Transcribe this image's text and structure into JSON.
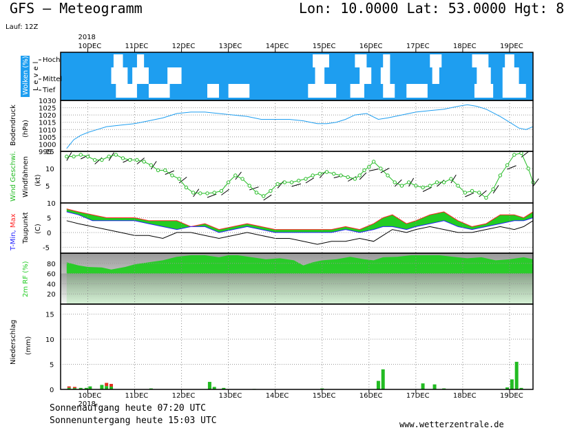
{
  "header": {
    "title": "GFS – Meteogramm",
    "location": "Lon: 10.0000 Lat: 53.0000 Hgt: 8"
  },
  "run_label": "Lauf: 12Z",
  "footer": {
    "sunrise": "Sonnenaufgang heute 07:20 UTC",
    "sunset": "Sonnenuntergang heute 15:03 UTC",
    "site": "www.wetterzentrale.de"
  },
  "colors": {
    "cloud_blue": "#1e9ef0",
    "pressure_line": "#1e9ef0",
    "wind_green": "#22bb22",
    "temp_blue": "#2020ff",
    "temp_red": "#ff2020",
    "rh_green": "#22cc22",
    "precip_green": "#22bb22",
    "precip_red": "#e03020"
  },
  "chart_data": {
    "type": "meteogram",
    "year_label": "2018",
    "day_labels": [
      "10DEC",
      "11DEC",
      "12DEC",
      "13DEC",
      "14DEC",
      "15DEC",
      "16DEC",
      "17DEC",
      "18DEC",
      "19DEC"
    ],
    "panels": [
      {
        "id": "clouds",
        "ylabel": [
          "Wolken (%)",
          "Level"
        ],
        "level_labels": [
          "Hoch",
          "Mittel",
          "Tief"
        ],
        "cloud_gaps": {
          "Hoch": [
            [
              10.55,
              10.75
            ],
            [
              11.05,
              11.2
            ],
            [
              14.8,
              15.15
            ],
            [
              15.7,
              15.95
            ],
            [
              16.3,
              16.45
            ],
            [
              17.3,
              17.55
            ],
            [
              18.2,
              18.55
            ],
            [
              18.9,
              19.1
            ]
          ],
          "Mittel": [
            [
              10.5,
              10.85
            ],
            [
              10.95,
              11.3
            ],
            [
              11.7,
              12.0
            ],
            [
              14.85,
              15.05
            ],
            [
              15.8,
              16.05
            ],
            [
              16.25,
              16.45
            ],
            [
              17.35,
              17.5
            ],
            [
              18.3,
              18.6
            ],
            [
              18.85,
              19.2
            ]
          ],
          "Tief": [
            [
              10.6,
              11.05
            ],
            [
              11.3,
              11.75
            ],
            [
              12.55,
              12.8
            ],
            [
              13.0,
              13.45
            ],
            [
              14.7,
              15.3
            ],
            [
              15.6,
              15.9
            ],
            [
              16.3,
              16.55
            ],
            [
              16.8,
              17.25
            ],
            [
              18.25,
              18.65
            ],
            [
              18.85,
              19.35
            ]
          ]
        }
      },
      {
        "id": "pressure",
        "ylabel": [
          "Bodendruck",
          "(hPa)"
        ],
        "ylim": [
          995,
          1030
        ],
        "yticks": [
          995,
          1000,
          1005,
          1010,
          1015,
          1020,
          1025,
          1030
        ],
        "x": [
          9.55,
          9.7,
          9.85,
          10.0,
          10.2,
          10.4,
          10.7,
          11.0,
          11.3,
          11.6,
          11.9,
          12.2,
          12.5,
          12.8,
          13.1,
          13.4,
          13.7,
          14.0,
          14.3,
          14.6,
          14.9,
          15.1,
          15.3,
          15.5,
          15.7,
          15.95,
          16.2,
          16.4,
          16.7,
          17.0,
          17.3,
          17.6,
          17.9,
          18.1,
          18.3,
          18.5,
          18.8,
          19.0,
          19.2,
          19.35,
          19.5
        ],
        "values": [
          997,
          1003,
          1006,
          1008,
          1010,
          1012,
          1013,
          1014,
          1016,
          1018,
          1021,
          1022,
          1022,
          1021,
          1020,
          1019,
          1017,
          1017,
          1017,
          1016,
          1014,
          1014,
          1015,
          1017,
          1020,
          1021,
          1017,
          1018,
          1020,
          1022,
          1023,
          1024,
          1026,
          1027,
          1026,
          1024,
          1019,
          1015,
          1011,
          1010,
          1012
        ]
      },
      {
        "id": "wind",
        "ylabel": [
          "Wind Geschwi.",
          "(kt)"
        ],
        "ylabel2": "Windfahnen",
        "ylim": [
          0,
          15
        ],
        "yticks": [
          5,
          10,
          15
        ],
        "x": [
          9.55,
          9.7,
          9.85,
          10.0,
          10.15,
          10.3,
          10.45,
          10.6,
          10.75,
          10.9,
          11.05,
          11.2,
          11.35,
          11.5,
          11.65,
          11.8,
          11.95,
          12.1,
          12.25,
          12.4,
          12.55,
          12.7,
          12.85,
          13.0,
          13.15,
          13.3,
          13.45,
          13.6,
          13.75,
          13.9,
          14.05,
          14.2,
          14.35,
          14.5,
          14.65,
          14.8,
          14.95,
          15.1,
          15.25,
          15.4,
          15.55,
          15.7,
          15.8,
          15.9,
          16.0,
          16.1,
          16.25,
          16.4,
          16.55,
          16.7,
          16.85,
          17.0,
          17.15,
          17.3,
          17.45,
          17.6,
          17.75,
          17.9,
          18.05,
          18.2,
          18.35,
          18.5,
          18.65,
          18.8,
          18.95,
          19.1,
          19.25,
          19.4,
          19.5
        ],
        "values": [
          13.5,
          13.5,
          14,
          13.5,
          12.5,
          12.5,
          13.5,
          14,
          13,
          12.5,
          12.5,
          12,
          11,
          9.5,
          9.5,
          8,
          7,
          4.5,
          3,
          2.8,
          2.8,
          3,
          3.5,
          6,
          8,
          7,
          5,
          3,
          2,
          3.5,
          5.5,
          6,
          6,
          6.5,
          7,
          8,
          8.5,
          9,
          8.5,
          8,
          7.5,
          7,
          8,
          9.5,
          10.5,
          12,
          10,
          8,
          6,
          5,
          6,
          5,
          4.5,
          5,
          6,
          6,
          7,
          5,
          3,
          3.5,
          3,
          1.5,
          4,
          8,
          11,
          14,
          14.5,
          10,
          6
        ]
      },
      {
        "id": "temperature",
        "ylabel": [
          "T-Min, Max",
          "Taupunkt",
          "(C)"
        ],
        "ylim": [
          -7,
          10
        ],
        "yticks": [
          -5,
          0,
          5,
          10
        ],
        "series": [
          {
            "name": "T-Min",
            "x": [
              9.55,
              9.8,
              10.1,
              10.4,
              10.7,
              11.0,
              11.3,
              11.6,
              11.9,
              12.2,
              12.5,
              12.8,
              13.1,
              13.4,
              13.7,
              14.0,
              14.3,
              14.6,
              14.9,
              15.2,
              15.5,
              15.8,
              16.1,
              16.3,
              16.5,
              16.8,
              17.0,
              17.3,
              17.6,
              17.9,
              18.2,
              18.5,
              18.8,
              19.1,
              19.3,
              19.5
            ],
            "values": [
              7,
              6,
              4,
              4,
              4,
              4,
              3,
              2,
              1,
              2,
              2,
              0,
              1,
              2,
              1,
              0,
              0,
              0,
              0,
              0,
              1,
              0,
              1,
              2,
              2,
              1,
              2,
              3,
              4,
              2,
              1,
              2,
              3,
              4,
              4,
              5
            ]
          },
          {
            "name": "Max",
            "x": [
              9.55,
              9.8,
              10.1,
              10.4,
              10.7,
              11.0,
              11.3,
              11.6,
              11.9,
              12.2,
              12.5,
              12.8,
              13.1,
              13.4,
              13.7,
              14.0,
              14.3,
              14.6,
              14.9,
              15.2,
              15.5,
              15.8,
              16.1,
              16.3,
              16.5,
              16.8,
              17.0,
              17.3,
              17.6,
              17.9,
              18.2,
              18.5,
              18.8,
              19.1,
              19.3,
              19.5
            ],
            "values": [
              8,
              7,
              6,
              5,
              5,
              5,
              4,
              4,
              4,
              2,
              3,
              1,
              2,
              3,
              2,
              1,
              1,
              1,
              1,
              1,
              2,
              1,
              3,
              5,
              6,
              3,
              4,
              6,
              7,
              4,
              2,
              3,
              6,
              6,
              5,
              7
            ]
          },
          {
            "name": "Taupunkt",
            "x": [
              9.55,
              9.8,
              10.1,
              10.4,
              10.7,
              11.0,
              11.3,
              11.6,
              11.9,
              12.2,
              12.5,
              12.8,
              13.1,
              13.4,
              13.7,
              14.0,
              14.3,
              14.6,
              14.9,
              15.2,
              15.5,
              15.8,
              16.1,
              16.3,
              16.5,
              16.8,
              17.0,
              17.3,
              17.6,
              17.9,
              18.2,
              18.5,
              18.8,
              19.1,
              19.3,
              19.5
            ],
            "values": [
              4,
              3,
              2,
              1,
              0,
              -1,
              -1,
              -2,
              0,
              0,
              -1,
              -2,
              -1,
              0,
              -1,
              -2,
              -2,
              -3,
              -4,
              -3,
              -3,
              -2,
              -3,
              -1,
              1,
              0,
              1,
              2,
              1,
              0,
              0,
              1,
              2,
              1,
              2,
              4
            ]
          }
        ]
      },
      {
        "id": "rh",
        "ylabel": [
          "2m RF (%)"
        ],
        "ylim": [
          0,
          100
        ],
        "yticks": [
          20,
          40,
          60,
          80
        ],
        "x": [
          9.55,
          9.8,
          10.0,
          10.3,
          10.5,
          10.8,
          11.0,
          11.3,
          11.6,
          11.9,
          12.2,
          12.5,
          12.8,
          13.0,
          13.2,
          13.5,
          13.8,
          14.1,
          14.4,
          14.6,
          14.8,
          15.0,
          15.3,
          15.6,
          15.9,
          16.1,
          16.3,
          16.6,
          16.9,
          17.2,
          17.5,
          17.8,
          18.1,
          18.4,
          18.7,
          19.0,
          19.3,
          19.5
        ],
        "values": [
          82,
          76,
          73,
          72,
          68,
          73,
          78,
          82,
          86,
          93,
          96,
          96,
          92,
          96,
          96,
          92,
          88,
          90,
          86,
          76,
          82,
          86,
          88,
          93,
          88,
          86,
          92,
          93,
          96,
          96,
          96,
          93,
          90,
          92,
          86,
          88,
          92,
          88
        ]
      },
      {
        "id": "precip",
        "ylabel": [
          "Niederschlag",
          "(mm)"
        ],
        "ylim": [
          0,
          17
        ],
        "yticks": [
          0,
          5,
          10,
          15
        ],
        "bars": [
          {
            "x": 9.6,
            "value": 0.6,
            "kind": "mixed"
          },
          {
            "x": 9.72,
            "value": 0.5,
            "kind": "mixed"
          },
          {
            "x": 9.85,
            "value": 0.3,
            "kind": "rain"
          },
          {
            "x": 9.97,
            "value": 0.3,
            "kind": "rain"
          },
          {
            "x": 10.05,
            "value": 0.6,
            "kind": "rain"
          },
          {
            "x": 10.3,
            "value": 0.9,
            "kind": "rain"
          },
          {
            "x": 10.4,
            "value": 1.3,
            "kind": "mixed"
          },
          {
            "x": 10.5,
            "value": 1.1,
            "kind": "mixed"
          },
          {
            "x": 11.35,
            "value": 0.2,
            "kind": "rain"
          },
          {
            "x": 12.6,
            "value": 1.5,
            "kind": "rain"
          },
          {
            "x": 12.7,
            "value": 0.5,
            "kind": "rain"
          },
          {
            "x": 12.9,
            "value": 0.3,
            "kind": "rain"
          },
          {
            "x": 13.55,
            "value": 0.1,
            "kind": "rain"
          },
          {
            "x": 15.0,
            "value": 0.2,
            "kind": "rain"
          },
          {
            "x": 16.2,
            "value": 1.7,
            "kind": "rain"
          },
          {
            "x": 16.3,
            "value": 4.0,
            "kind": "rain"
          },
          {
            "x": 17.15,
            "value": 1.2,
            "kind": "rain"
          },
          {
            "x": 17.4,
            "value": 1.0,
            "kind": "rain"
          },
          {
            "x": 17.6,
            "value": 0.2,
            "kind": "rain"
          },
          {
            "x": 18.95,
            "value": 0.4,
            "kind": "rain"
          },
          {
            "x": 19.05,
            "value": 2.0,
            "kind": "rain"
          },
          {
            "x": 19.15,
            "value": 5.5,
            "kind": "rain"
          },
          {
            "x": 19.25,
            "value": 0.3,
            "kind": "rain"
          }
        ]
      }
    ]
  }
}
